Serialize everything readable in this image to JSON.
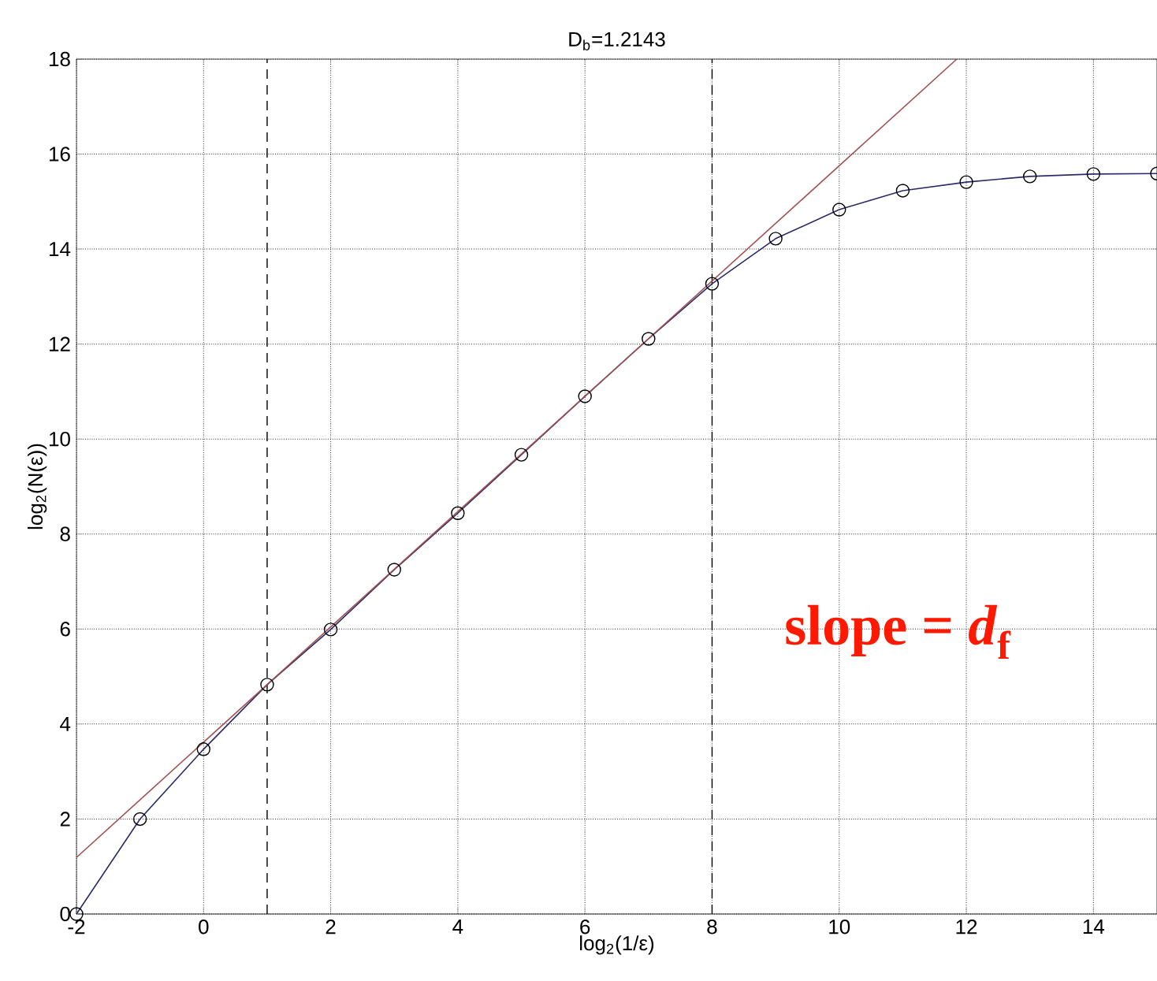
{
  "chart_data": {
    "type": "line",
    "title": "D$_{b}$=1.2143",
    "xlabel": "log$_{2}$(1/ε)",
    "ylabel": "log$_{2}$(N(ε))",
    "xlim": [
      -2,
      15
    ],
    "ylim": [
      0,
      18
    ],
    "xticks": [
      -2,
      0,
      2,
      4,
      6,
      8,
      10,
      12,
      14
    ],
    "yticks": [
      0,
      2,
      4,
      6,
      8,
      10,
      12,
      14,
      16,
      18
    ],
    "grid": true,
    "series": [
      {
        "color": "#2b2b6b",
        "marker": "circle",
        "x": [
          -2,
          -1,
          0,
          1,
          2,
          3,
          4,
          5,
          6,
          7,
          8,
          9,
          10,
          11,
          12,
          13,
          14,
          15
        ],
        "values": [
          0,
          2.0,
          3.47,
          4.83,
          5.99,
          7.25,
          8.44,
          9.67,
          10.9,
          12.11,
          13.27,
          14.22,
          14.83,
          15.23,
          15.41,
          15.53,
          15.58,
          15.59
        ]
      },
      {
        "color": "#a05050",
        "marker": "none",
        "x": [
          -2,
          11.85
        ],
        "values": [
          1.19,
          18
        ]
      }
    ],
    "ref_lines": [
      {
        "axis": "x",
        "value": 1,
        "line_style": "dashed"
      },
      {
        "axis": "x",
        "value": 8,
        "line_style": "dashed"
      }
    ],
    "annotations": [
      "slope = *d*$_{f}$"
    ]
  }
}
